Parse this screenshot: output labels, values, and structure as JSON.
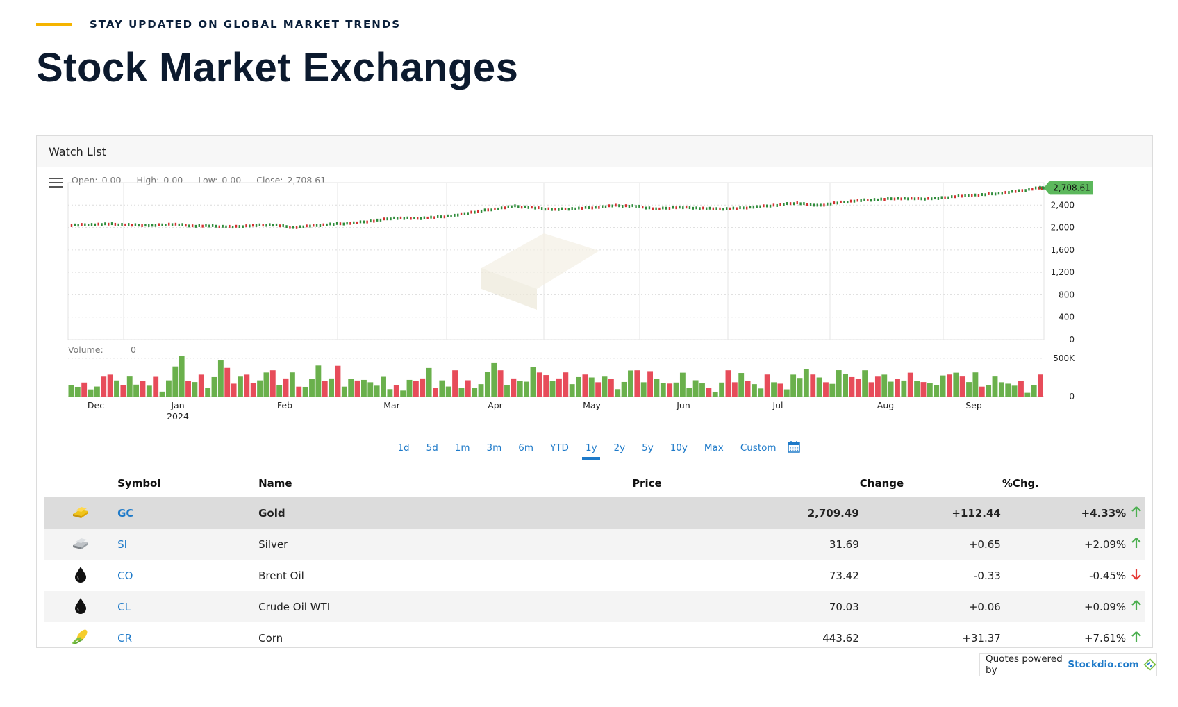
{
  "eyebrow": "STAY UPDATED ON GLOBAL MARKET TRENDS",
  "title": "Stock Market Exchanges",
  "widget": {
    "title": "Watch List",
    "ohlc": {
      "open_label": "Open:",
      "open": "0.00",
      "high_label": "High:",
      "high": "0.00",
      "low_label": "Low:",
      "low": "0.00",
      "close_label": "Close:",
      "close": "2,708.61"
    },
    "volume_label": "Volume:",
    "volume_value": "0",
    "ranges": [
      "1d",
      "5d",
      "1m",
      "3m",
      "6m",
      "YTD",
      "1y",
      "2y",
      "5y",
      "10y",
      "Max",
      "Custom"
    ],
    "active_range": "1y",
    "colors": {
      "up": "#6ab04c",
      "down": "#e74c5a",
      "accent": "#1e7ac9",
      "price_tag": "#5cb85c"
    }
  },
  "chart_data": {
    "type": "line",
    "price_tag": "2,708.61",
    "y_ticks": [
      "2,400",
      "2,000",
      "1,600",
      "1,200",
      "800",
      "400",
      "0"
    ],
    "ylim": [
      0,
      2800
    ],
    "volume_ticks": [
      "500K",
      "0"
    ],
    "x_ticks": [
      "Dec",
      "Jan",
      "Feb",
      "Mar",
      "Apr",
      "May",
      "Jun",
      "Jul",
      "Aug",
      "Sep"
    ],
    "x_sub_tick": "2024",
    "series": [
      {
        "values": [
          2040,
          2055,
          2060,
          2045,
          2035,
          2060,
          2030,
          2025,
          2010,
          2035,
          2050,
          2000,
          2030,
          2060,
          2080,
          2120,
          2170,
          2160,
          2180,
          2215,
          2280,
          2330,
          2380,
          2350,
          2320,
          2340,
          2360,
          2390,
          2380,
          2330,
          2360,
          2350,
          2330,
          2340,
          2370,
          2400,
          2440,
          2390,
          2440,
          2480,
          2500,
          2520,
          2510,
          2520,
          2560,
          2580,
          2610,
          2650,
          2708
        ]
      }
    ],
    "volume": [
      {
        "v": 0.45,
        "u": true
      },
      {
        "v": 0.3,
        "u": true
      },
      {
        "v": 0.35,
        "u": false
      },
      {
        "v": 0.15,
        "u": true
      },
      {
        "v": 0.35,
        "u": true
      },
      {
        "v": 0.55,
        "u": false
      },
      {
        "v": 0.5,
        "u": false
      },
      {
        "v": 0.65,
        "u": true
      },
      {
        "v": 0.35,
        "u": false
      },
      {
        "v": 0.5,
        "u": true
      },
      {
        "v": 0.25,
        "u": true
      },
      {
        "v": 0.55,
        "u": false
      },
      {
        "v": 0.3,
        "u": true
      },
      {
        "v": 0.45,
        "u": false
      },
      {
        "v": 0.2,
        "u": true
      },
      {
        "v": 0.5,
        "u": true
      },
      {
        "v": 0.75,
        "u": true
      },
      {
        "v": 0.85,
        "u": true
      },
      {
        "v": 0.55,
        "u": false
      },
      {
        "v": 0.4,
        "u": true
      },
      {
        "v": 0.5,
        "u": false
      },
      {
        "v": 0.35,
        "u": true
      },
      {
        "v": 0.6,
        "u": true
      },
      {
        "v": 0.9,
        "u": true
      },
      {
        "v": 0.6,
        "u": false
      },
      {
        "v": 0.45,
        "u": false
      },
      {
        "v": 0.55,
        "u": true
      },
      {
        "v": 0.5,
        "u": false
      },
      {
        "v": 0.55,
        "u": false
      },
      {
        "v": 0.5,
        "u": true
      },
      {
        "v": 0.6,
        "u": true
      },
      {
        "v": 0.55,
        "u": false
      },
      {
        "v": 0.4,
        "u": true
      },
      {
        "v": 0.5,
        "u": false
      },
      {
        "v": 0.55,
        "u": true
      },
      {
        "v": 0.4,
        "u": false
      },
      {
        "v": 0.3,
        "u": true
      },
      {
        "v": 0.45,
        "u": true
      },
      {
        "v": 0.65,
        "u": true
      },
      {
        "v": 0.55,
        "u": false
      },
      {
        "v": 0.5,
        "u": true
      },
      {
        "v": 0.7,
        "u": false
      },
      {
        "v": 0.4,
        "u": true
      },
      {
        "v": 0.55,
        "u": true
      },
      {
        "v": 0.4,
        "u": false
      },
      {
        "v": 0.35,
        "u": true
      },
      {
        "v": 0.5,
        "u": true
      },
      {
        "v": 0.3,
        "u": true
      }
    ]
  },
  "table": {
    "headers": {
      "symbol": "Symbol",
      "name": "Name",
      "price": "Price",
      "change": "Change",
      "pct": "%Chg."
    },
    "rows": [
      {
        "icon": "gold-bar-icon",
        "symbol": "GC",
        "name": "Gold",
        "price": "2,709.49",
        "change": "+112.44",
        "pct": "+4.33%",
        "dir": "up"
      },
      {
        "icon": "silver-bar-icon",
        "symbol": "SI",
        "name": "Silver",
        "price": "31.69",
        "change": "+0.65",
        "pct": "+2.09%",
        "dir": "up"
      },
      {
        "icon": "oil-drop-icon",
        "symbol": "CO",
        "name": "Brent Oil",
        "price": "73.42",
        "change": "-0.33",
        "pct": "-0.45%",
        "dir": "down"
      },
      {
        "icon": "oil-drop-icon",
        "symbol": "CL",
        "name": "Crude Oil WTI",
        "price": "70.03",
        "change": "+0.06",
        "pct": "+0.09%",
        "dir": "up"
      },
      {
        "icon": "corn-icon",
        "symbol": "CR",
        "name": "Corn",
        "price": "443.62",
        "change": "+31.37",
        "pct": "+7.61%",
        "dir": "up"
      }
    ]
  },
  "powered": {
    "prefix": "Quotes powered by",
    "brand": "Stockdio.com"
  }
}
